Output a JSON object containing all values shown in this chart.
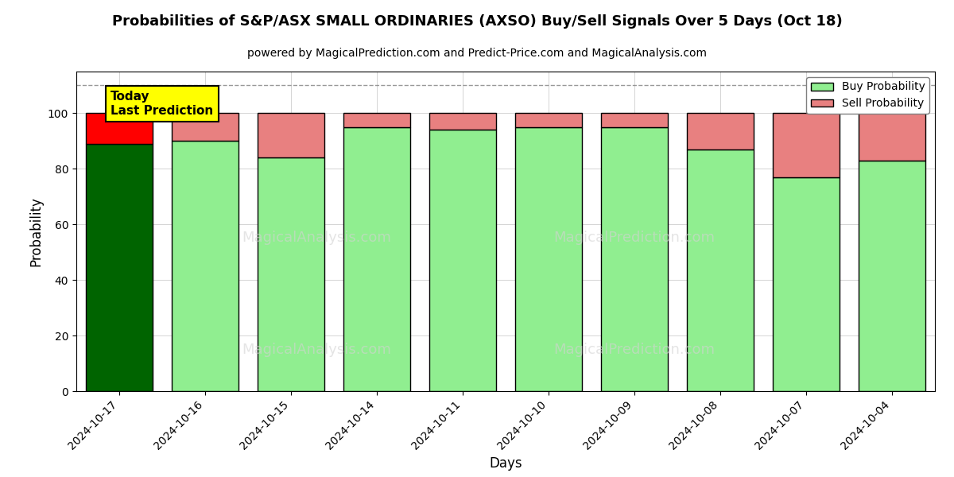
{
  "title": "Probabilities of S&P/ASX SMALL ORDINARIES (AXSO) Buy/Sell Signals Over 5 Days (Oct 18)",
  "subtitle": "powered by MagicalPrediction.com and Predict-Price.com and MagicalAnalysis.com",
  "xlabel": "Days",
  "ylabel": "Probability",
  "categories": [
    "2024-10-17",
    "2024-10-16",
    "2024-10-15",
    "2024-10-14",
    "2024-10-11",
    "2024-10-10",
    "2024-10-09",
    "2024-10-08",
    "2024-10-07",
    "2024-10-04"
  ],
  "buy_values": [
    89,
    90,
    84,
    95,
    94,
    95,
    95,
    87,
    77,
    83
  ],
  "sell_values": [
    11,
    10,
    16,
    5,
    6,
    5,
    5,
    13,
    23,
    17
  ],
  "buy_color_today": "#006400",
  "sell_color_today": "#FF0000",
  "buy_color_normal": "#90EE90",
  "sell_color_normal": "#E88080",
  "bar_edgecolor": "#000000",
  "bar_linewidth": 1.0,
  "ylim": [
    0,
    115
  ],
  "yticks": [
    0,
    20,
    40,
    60,
    80,
    100
  ],
  "dashed_line_y": 110,
  "today_label": "Today\nLast Prediction",
  "legend_buy": "Buy Probability",
  "legend_sell": "Sell Probability",
  "background_color": "#ffffff",
  "grid_color": "#aaaaaa",
  "figsize": [
    12.0,
    6.0
  ],
  "dpi": 100
}
